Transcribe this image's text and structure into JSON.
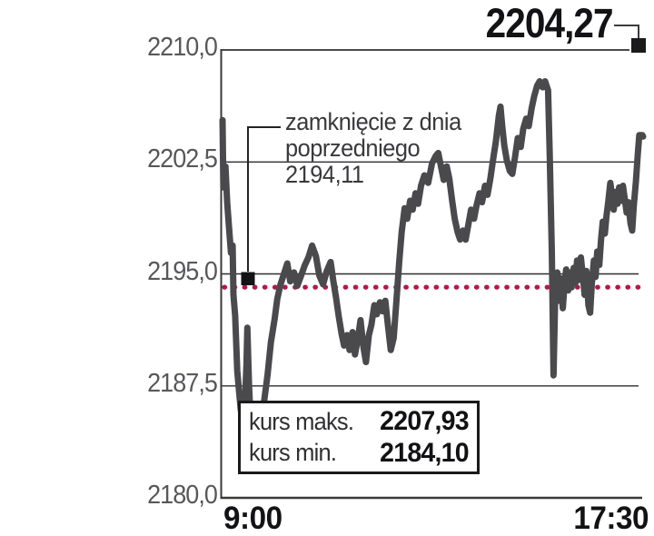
{
  "header": {
    "last_price_label": "2204,27"
  },
  "annotation": {
    "line1": "zamknięcie z dnia",
    "line2": "poprzedniego",
    "line3": "2194,11"
  },
  "stats_box": {
    "max_label": "kurs maks.",
    "max_value": "2207,93",
    "min_label": "kurs min.",
    "min_value": "2184,10"
  },
  "chart_data": {
    "type": "line",
    "title": "",
    "xlabel": "",
    "ylabel": "",
    "x_ticks": [
      "9:00",
      "17:30"
    ],
    "y_ticks": [
      "2210,0",
      "2202,5",
      "2195,0",
      "2187,5",
      "2180,0"
    ],
    "y_tick_values": [
      2210.0,
      2202.5,
      2195.0,
      2187.5,
      2180.0
    ],
    "ylim": [
      2180.0,
      2210.0
    ],
    "grid": true,
    "previous_close": 2194.11,
    "last_price": 2204.27,
    "session_max": 2207.93,
    "session_min": 2184.1,
    "colors": {
      "price_line": "#4a4a4d",
      "prev_close_dotted": "#b6164a",
      "grid": "#2e2e30",
      "axis": "#39393b",
      "tick_text": "#58585b",
      "text_dark": "#131315"
    },
    "series": [
      {
        "name": "kurs",
        "points": [
          [
            0.0,
            2205.3
          ],
          [
            0.002,
            2200.8
          ],
          [
            0.007,
            2202.2
          ],
          [
            0.011,
            2199.8
          ],
          [
            0.015,
            2198.3
          ],
          [
            0.02,
            2196.4
          ],
          [
            0.024,
            2196.9
          ],
          [
            0.026,
            2193.6
          ],
          [
            0.03,
            2192.2
          ],
          [
            0.035,
            2188.5
          ],
          [
            0.039,
            2187.2
          ],
          [
            0.043,
            2186.0
          ],
          [
            0.048,
            2184.8
          ],
          [
            0.052,
            2185.5
          ],
          [
            0.057,
            2189.0
          ],
          [
            0.059,
            2191.4
          ],
          [
            0.063,
            2187.5
          ],
          [
            0.067,
            2185.0
          ],
          [
            0.074,
            2184.3
          ],
          [
            0.083,
            2184.1
          ],
          [
            0.091,
            2185.6
          ],
          [
            0.098,
            2186.3
          ],
          [
            0.107,
            2188.2
          ],
          [
            0.115,
            2190.4
          ],
          [
            0.124,
            2192.0
          ],
          [
            0.13,
            2193.3
          ],
          [
            0.137,
            2194.2
          ],
          [
            0.146,
            2195.0
          ],
          [
            0.154,
            2195.7
          ],
          [
            0.161,
            2194.5
          ],
          [
            0.17,
            2195.1
          ],
          [
            0.178,
            2194.2
          ],
          [
            0.187,
            2194.9
          ],
          [
            0.196,
            2195.6
          ],
          [
            0.204,
            2196.1
          ],
          [
            0.213,
            2196.9
          ],
          [
            0.222,
            2196.2
          ],
          [
            0.23,
            2194.9
          ],
          [
            0.239,
            2194.3
          ],
          [
            0.248,
            2195.2
          ],
          [
            0.257,
            2195.8
          ],
          [
            0.263,
            2194.6
          ],
          [
            0.27,
            2193.4
          ],
          [
            0.276,
            2192.2
          ],
          [
            0.283,
            2191.0
          ],
          [
            0.289,
            2190.2
          ],
          [
            0.296,
            2190.9
          ],
          [
            0.302,
            2189.9
          ],
          [
            0.309,
            2191.1
          ],
          [
            0.315,
            2189.6
          ],
          [
            0.322,
            2190.7
          ],
          [
            0.328,
            2191.9
          ],
          [
            0.335,
            2190.1
          ],
          [
            0.341,
            2189.1
          ],
          [
            0.348,
            2190.9
          ],
          [
            0.354,
            2191.6
          ],
          [
            0.361,
            2192.9
          ],
          [
            0.367,
            2192.3
          ],
          [
            0.374,
            2193.1
          ],
          [
            0.38,
            2192.5
          ],
          [
            0.387,
            2193.2
          ],
          [
            0.393,
            2191.6
          ],
          [
            0.4,
            2189.9
          ],
          [
            0.407,
            2190.7
          ],
          [
            0.413,
            2193.0
          ],
          [
            0.42,
            2195.8
          ],
          [
            0.426,
            2197.8
          ],
          [
            0.433,
            2199.4
          ],
          [
            0.439,
            2198.7
          ],
          [
            0.446,
            2199.9
          ],
          [
            0.452,
            2199.3
          ],
          [
            0.459,
            2200.4
          ],
          [
            0.465,
            2199.7
          ],
          [
            0.472,
            2200.9
          ],
          [
            0.48,
            2201.6
          ],
          [
            0.489,
            2201.1
          ],
          [
            0.498,
            2202.4
          ],
          [
            0.507,
            2202.9
          ],
          [
            0.513,
            2203.1
          ],
          [
            0.52,
            2202.1
          ],
          [
            0.526,
            2201.3
          ],
          [
            0.533,
            2202.2
          ],
          [
            0.539,
            2201.4
          ],
          [
            0.546,
            2199.9
          ],
          [
            0.552,
            2198.7
          ],
          [
            0.559,
            2197.8
          ],
          [
            0.565,
            2197.3
          ],
          [
            0.572,
            2197.9
          ],
          [
            0.578,
            2197.3
          ],
          [
            0.585,
            2198.4
          ],
          [
            0.591,
            2199.3
          ],
          [
            0.598,
            2198.7
          ],
          [
            0.604,
            2199.6
          ],
          [
            0.611,
            2200.4
          ],
          [
            0.617,
            2199.8
          ],
          [
            0.624,
            2200.9
          ],
          [
            0.63,
            2200.3
          ],
          [
            0.637,
            2201.4
          ],
          [
            0.643,
            2202.6
          ],
          [
            0.65,
            2203.9
          ],
          [
            0.657,
            2205.6
          ],
          [
            0.661,
            2206.2
          ],
          [
            0.665,
            2204.9
          ],
          [
            0.67,
            2203.6
          ],
          [
            0.676,
            2202.6
          ],
          [
            0.683,
            2201.9
          ],
          [
            0.689,
            2201.7
          ],
          [
            0.696,
            2202.9
          ],
          [
            0.702,
            2204.1
          ],
          [
            0.709,
            2203.5
          ],
          [
            0.715,
            2204.7
          ],
          [
            0.722,
            2205.4
          ],
          [
            0.728,
            2204.9
          ],
          [
            0.735,
            2206.1
          ],
          [
            0.741,
            2206.9
          ],
          [
            0.748,
            2207.6
          ],
          [
            0.754,
            2207.9
          ],
          [
            0.761,
            2207.5
          ],
          [
            0.767,
            2207.9
          ],
          [
            0.774,
            2207.3
          ],
          [
            0.778,
            2203.0
          ],
          [
            0.783,
            2196.5
          ],
          [
            0.787,
            2188.2
          ],
          [
            0.791,
            2193.5
          ],
          [
            0.796,
            2195.1
          ],
          [
            0.8,
            2193.2
          ],
          [
            0.804,
            2194.7
          ],
          [
            0.809,
            2192.7
          ],
          [
            0.813,
            2194.2
          ],
          [
            0.817,
            2195.3
          ],
          [
            0.822,
            2193.9
          ],
          [
            0.826,
            2195.1
          ],
          [
            0.83,
            2194.1
          ],
          [
            0.835,
            2195.4
          ],
          [
            0.839,
            2194.4
          ],
          [
            0.843,
            2195.9
          ],
          [
            0.848,
            2194.6
          ],
          [
            0.852,
            2196.1
          ],
          [
            0.857,
            2194.8
          ],
          [
            0.861,
            2193.6
          ],
          [
            0.865,
            2195.2
          ],
          [
            0.87,
            2192.9
          ],
          [
            0.874,
            2192.4
          ],
          [
            0.878,
            2194.3
          ],
          [
            0.883,
            2195.9
          ],
          [
            0.887,
            2194.8
          ],
          [
            0.891,
            2196.5
          ],
          [
            0.896,
            2195.6
          ],
          [
            0.9,
            2197.3
          ],
          [
            0.904,
            2198.5
          ],
          [
            0.909,
            2197.7
          ],
          [
            0.913,
            2198.9
          ],
          [
            0.917,
            2199.8
          ],
          [
            0.922,
            2201.1
          ],
          [
            0.926,
            2200.3
          ],
          [
            0.93,
            2199.3
          ],
          [
            0.935,
            2200.5
          ],
          [
            0.939,
            2199.7
          ],
          [
            0.943,
            2200.8
          ],
          [
            0.948,
            2199.9
          ],
          [
            0.952,
            2200.9
          ],
          [
            0.957,
            2199.9
          ],
          [
            0.961,
            2199.1
          ],
          [
            0.965,
            2199.8
          ],
          [
            0.97,
            2198.4
          ],
          [
            0.974,
            2197.9
          ],
          [
            0.978,
            2199.6
          ],
          [
            0.983,
            2201.2
          ],
          [
            0.987,
            2202.9
          ],
          [
            0.991,
            2204.3
          ],
          [
            0.998,
            2204.3
          ],
          [
            1.0,
            2204.2
          ]
        ]
      }
    ]
  }
}
